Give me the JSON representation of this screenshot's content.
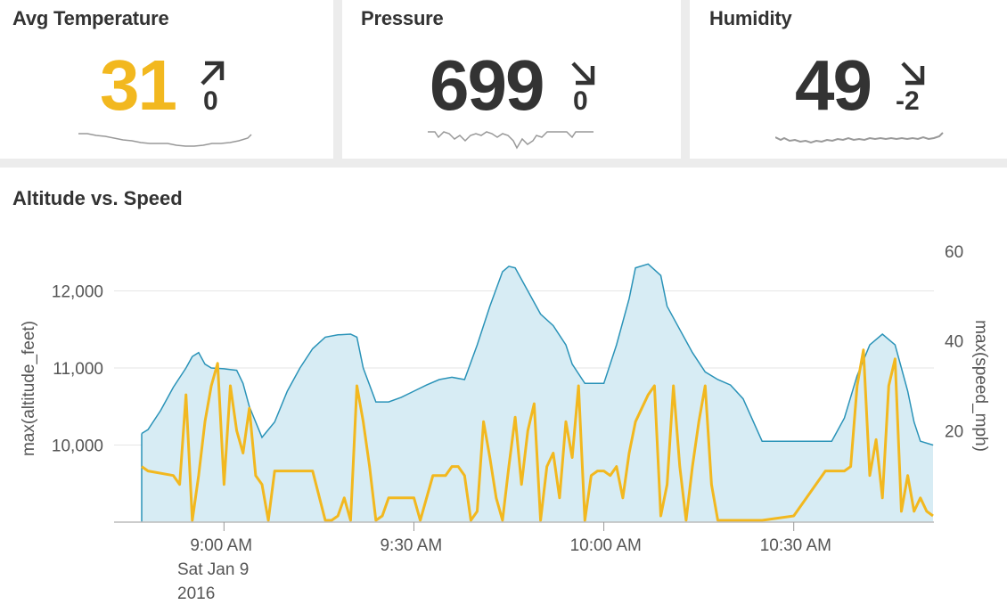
{
  "colors": {
    "accent_yellow": "#f2b81f",
    "value_dark": "#333333",
    "altitude_line": "#2a93b8",
    "altitude_fill": "#d7ecf4",
    "speed_line": "#f2b81f",
    "sparkline": "#999999",
    "grid": "#e6e6e6"
  },
  "kpis": [
    {
      "title": "Avg Temperature",
      "value": "31",
      "delta": "0",
      "trend": "up-right-arrow",
      "value_color": "#f2b81f"
    },
    {
      "title": "Pressure",
      "value": "699",
      "delta": "0",
      "trend": "down-right-arrow",
      "value_color": "#333333"
    },
    {
      "title": "Humidity",
      "value": "49",
      "delta": "-2",
      "trend": "down-right-arrow",
      "value_color": "#333333"
    }
  ],
  "chart_data": {
    "type": "line",
    "title": "Altitude vs. Speed",
    "x_tick_labels": [
      "9:00 AM",
      "9:30 AM",
      "10:00 AM",
      "10:30 AM"
    ],
    "x_date_label": [
      "Sat Jan 9",
      "2016"
    ],
    "y_left": {
      "label": "max(altitude_feet)",
      "range": [
        9000,
        12700
      ],
      "ticks": [
        "10,000",
        "11,000",
        "12,000"
      ]
    },
    "y_right": {
      "label": "max(speed_mph)",
      "range": [
        0,
        60
      ],
      "ticks": [
        "20",
        "40",
        "60"
      ]
    },
    "grid": true,
    "series": [
      {
        "name": "max(altitude_feet)",
        "kind": "area",
        "time": [
          "8:47",
          "8:48",
          "8:50",
          "8:52",
          "8:54",
          "8:55",
          "8:56",
          "8:57",
          "8:58",
          "9:00",
          "9:02",
          "9:03",
          "9:04",
          "9:05",
          "9:06",
          "9:08",
          "9:10",
          "9:12",
          "9:14",
          "9:16",
          "9:18",
          "9:20",
          "9:21",
          "9:22",
          "9:24",
          "9:26",
          "9:28",
          "9:30",
          "9:32",
          "9:34",
          "9:36",
          "9:38",
          "9:40",
          "9:42",
          "9:44",
          "9:45",
          "9:46",
          "9:48",
          "9:50",
          "9:52",
          "9:54",
          "9:55",
          "9:57",
          "9:58",
          "10:00",
          "10:02",
          "10:04",
          "10:05",
          "10:07",
          "10:09",
          "10:10",
          "10:12",
          "10:14",
          "10:16",
          "10:18",
          "10:20",
          "10:22",
          "10:25",
          "10:28",
          "10:30",
          "10:32",
          "10:34",
          "10:36",
          "10:38",
          "10:40",
          "10:42",
          "10:44",
          "10:46",
          "10:48",
          "10:49",
          "10:50",
          "10:52"
        ],
        "values": [
          10150,
          10200,
          10450,
          10750,
          11000,
          11150,
          11200,
          11050,
          11000,
          10990,
          10970,
          10800,
          10500,
          10300,
          10100,
          10300,
          10700,
          11000,
          11250,
          11400,
          11430,
          11440,
          11400,
          11000,
          10560,
          10560,
          10620,
          10700,
          10780,
          10850,
          10880,
          10850,
          11300,
          11800,
          12250,
          12320,
          12300,
          12000,
          11700,
          11550,
          11300,
          11050,
          10800,
          10800,
          10800,
          11300,
          11900,
          12300,
          12350,
          12200,
          11800,
          11500,
          11200,
          10950,
          10850,
          10780,
          10600,
          10050,
          10050,
          10050,
          10050,
          10050,
          10050,
          10350,
          10900,
          11300,
          11440,
          11300,
          10700,
          10300,
          10050,
          10000
        ]
      },
      {
        "name": "max(speed_mph)",
        "kind": "line",
        "time": [
          "8:47",
          "8:48",
          "8:52",
          "8:53",
          "8:54",
          "8:55",
          "8:56",
          "8:57",
          "8:58",
          "8:59",
          "9:00",
          "9:01",
          "9:02",
          "9:03",
          "9:04",
          "9:05",
          "9:06",
          "9:07",
          "9:08",
          "9:10",
          "9:12",
          "9:14",
          "9:16",
          "9:17",
          "9:18",
          "9:19",
          "9:20",
          "9:21",
          "9:22",
          "9:23",
          "9:24",
          "9:25",
          "9:26",
          "9:28",
          "9:30",
          "9:31",
          "9:32",
          "9:33",
          "9:35",
          "9:36",
          "9:37",
          "9:38",
          "9:39",
          "9:40",
          "9:41",
          "9:42",
          "9:43",
          "9:44",
          "9:45",
          "9:46",
          "9:47",
          "9:48",
          "9:49",
          "9:50",
          "9:51",
          "9:52",
          "9:53",
          "9:54",
          "9:55",
          "9:56",
          "9:57",
          "9:58",
          "9:59",
          "10:00",
          "10:01",
          "10:02",
          "10:03",
          "10:04",
          "10:05",
          "10:06",
          "10:07",
          "10:08",
          "10:09",
          "10:10",
          "10:11",
          "10:12",
          "10:13",
          "10:14",
          "10:15",
          "10:16",
          "10:17",
          "10:18",
          "10:19",
          "10:20",
          "10:21",
          "10:22",
          "10:23",
          "10:24",
          "10:25",
          "10:30",
          "10:35",
          "10:38",
          "10:39",
          "10:40",
          "10:41",
          "10:42",
          "10:43",
          "10:44",
          "10:45",
          "10:46",
          "10:47",
          "10:48",
          "10:49",
          "10:50",
          "10:51",
          "10:52"
        ],
        "values": [
          12,
          11,
          10,
          8,
          28,
          0,
          10,
          22,
          30,
          35,
          8,
          30,
          20,
          15,
          25,
          10,
          8,
          0,
          11,
          11,
          11,
          11,
          0,
          0,
          1,
          5,
          0,
          30,
          22,
          12,
          0,
          1,
          5,
          5,
          5,
          0,
          5,
          10,
          10,
          12,
          12,
          10,
          0,
          2,
          22,
          14,
          5,
          0,
          12,
          23,
          8,
          20,
          26,
          0,
          12,
          15,
          5,
          22,
          14,
          30,
          0,
          10,
          11,
          11,
          10,
          12,
          5,
          15,
          22,
          25,
          28,
          30,
          1,
          8,
          30,
          12,
          0,
          12,
          22,
          30,
          8,
          0,
          0,
          0,
          0,
          0,
          0,
          0,
          0,
          1,
          11,
          11,
          12,
          30,
          38,
          10,
          18,
          5,
          30,
          36,
          2,
          10,
          2,
          5,
          2,
          1
        ]
      }
    ]
  }
}
